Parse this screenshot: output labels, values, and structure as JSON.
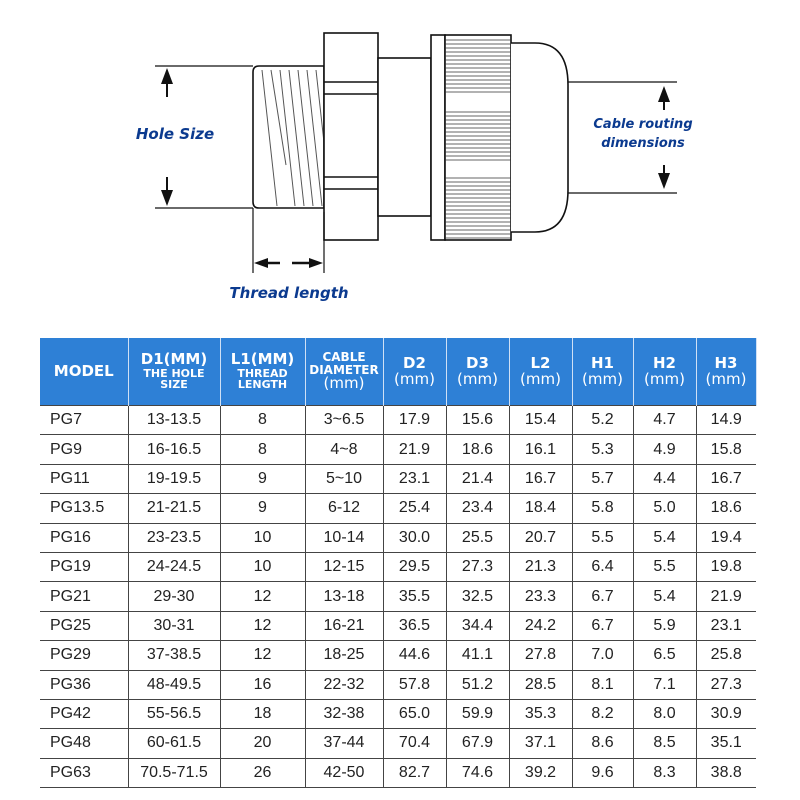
{
  "diagram": {
    "labels": {
      "hole_size": "Hole Size",
      "cable_routing_line1": "Cable routing",
      "cable_routing_line2": "dimensions",
      "thread_length": "Thread length"
    },
    "text_color": "#0b3a8f"
  },
  "table": {
    "header_color": "#2e80d6",
    "columns": [
      {
        "main": "MODEL",
        "sub": ""
      },
      {
        "main": "D1(MM)",
        "sub": "THE HOLE SIZE"
      },
      {
        "main": "L1(MM)",
        "sub": "THREAD LENGTH"
      },
      {
        "main": "CABLE DIAMETER",
        "sub": "(mm)"
      },
      {
        "main": "D2",
        "sub": "(mm)"
      },
      {
        "main": "D3",
        "sub": "(mm)"
      },
      {
        "main": "L2",
        "sub": "(mm)"
      },
      {
        "main": "H1",
        "sub": "(mm)"
      },
      {
        "main": "H2",
        "sub": "(mm)"
      },
      {
        "main": "H3",
        "sub": "(mm)"
      }
    ],
    "rows": [
      [
        "PG7",
        "13-13.5",
        "8",
        "3~6.5",
        "17.9",
        "15.6",
        "15.4",
        "5.2",
        "4.7",
        "14.9"
      ],
      [
        "PG9",
        "16-16.5",
        "8",
        "4~8",
        "21.9",
        "18.6",
        "16.1",
        "5.3",
        "4.9",
        "15.8"
      ],
      [
        "PG11",
        "19-19.5",
        "9",
        "5~10",
        "23.1",
        "21.4",
        "16.7",
        "5.7",
        "4.4",
        "16.7"
      ],
      [
        "PG13.5",
        "21-21.5",
        "9",
        "6-12",
        "25.4",
        "23.4",
        "18.4",
        "5.8",
        "5.0",
        "18.6"
      ],
      [
        "PG16",
        "23-23.5",
        "10",
        "10-14",
        "30.0",
        "25.5",
        "20.7",
        "5.5",
        "5.4",
        "19.4"
      ],
      [
        "PG19",
        "24-24.5",
        "10",
        "12-15",
        "29.5",
        "27.3",
        "21.3",
        "6.4",
        "5.5",
        "19.8"
      ],
      [
        "PG21",
        "29-30",
        "12",
        "13-18",
        "35.5",
        "32.5",
        "23.3",
        "6.7",
        "5.4",
        "21.9"
      ],
      [
        "PG25",
        "30-31",
        "12",
        "16-21",
        "36.5",
        "34.4",
        "24.2",
        "6.7",
        "5.9",
        "23.1"
      ],
      [
        "PG29",
        "37-38.5",
        "12",
        "18-25",
        "44.6",
        "41.1",
        "27.8",
        "7.0",
        "6.5",
        "25.8"
      ],
      [
        "PG36",
        "48-49.5",
        "16",
        "22-32",
        "57.8",
        "51.2",
        "28.5",
        "8.1",
        "7.1",
        "27.3"
      ],
      [
        "PG42",
        "55-56.5",
        "18",
        "32-38",
        "65.0",
        "59.9",
        "35.3",
        "8.2",
        "8.0",
        "30.9"
      ],
      [
        "PG48",
        "60-61.5",
        "20",
        "37-44",
        "70.4",
        "67.9",
        "37.1",
        "8.6",
        "8.5",
        "35.1"
      ],
      [
        "PG63",
        "70.5-71.5",
        "26",
        "42-50",
        "82.7",
        "74.6",
        "39.2",
        "9.6",
        "8.3",
        "38.8"
      ]
    ]
  }
}
